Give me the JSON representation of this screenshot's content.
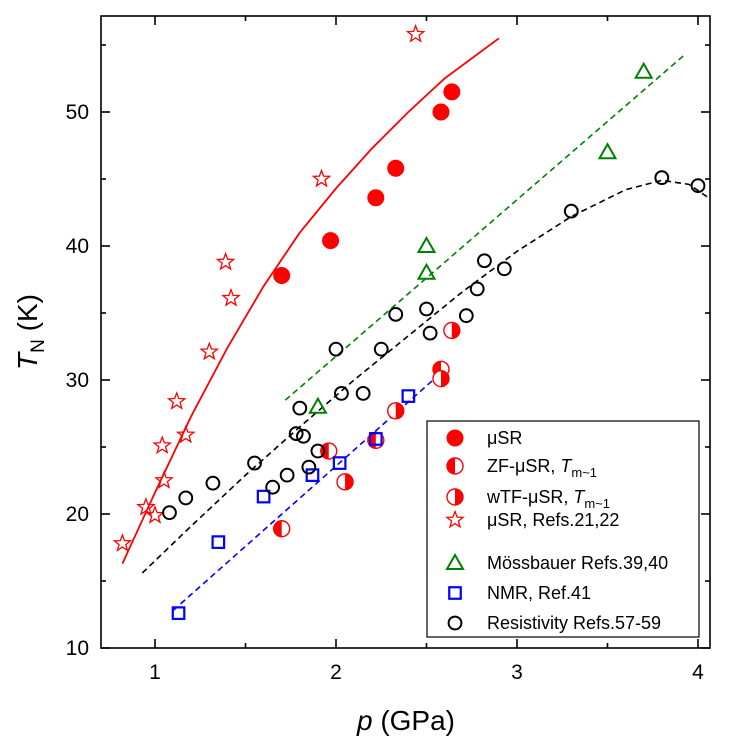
{
  "chart_data": {
    "type": "scatter",
    "xlabel": "p (GPa)",
    "ylabel": "T_N (K)",
    "xlim": [
      0.75,
      4.1
    ],
    "ylim": [
      10,
      57
    ],
    "xticks": [
      "1",
      "2",
      "3",
      "4"
    ],
    "yticks": [
      "10",
      "20",
      "30",
      "40",
      "50"
    ],
    "grid": false,
    "legend_placement": "bottom-right",
    "series": [
      {
        "name": "μSR",
        "marker": "filled-circle",
        "color": "#ff0000",
        "points": [
          [
            1.7,
            37.8
          ],
          [
            1.97,
            40.4
          ],
          [
            2.22,
            43.6
          ],
          [
            2.33,
            45.8
          ],
          [
            2.58,
            50.0
          ],
          [
            2.64,
            51.5
          ]
        ]
      },
      {
        "name": "ZF-μSR, T_m~1",
        "marker": "half-circle-left",
        "color": "#ff0000",
        "points": [
          [
            1.7,
            18.9
          ],
          [
            1.96,
            24.7
          ],
          [
            2.22,
            25.5
          ],
          [
            2.58,
            30.8
          ]
        ]
      },
      {
        "name": "wTF-μSR, T_m~1",
        "marker": "half-circle-right",
        "color": "#ff0000",
        "points": [
          [
            2.05,
            22.4
          ],
          [
            2.33,
            27.7
          ],
          [
            2.58,
            30.1
          ],
          [
            2.64,
            33.7
          ]
        ]
      },
      {
        "name": "μSR, Refs.21,22",
        "marker": "open-star",
        "color": "#ff0000",
        "points": [
          [
            0.82,
            17.8
          ],
          [
            0.95,
            20.5
          ],
          [
            1.0,
            19.9
          ],
          [
            1.05,
            22.5
          ],
          [
            1.04,
            25.1
          ],
          [
            1.12,
            28.4
          ],
          [
            1.17,
            25.9
          ],
          [
            1.3,
            32.1
          ],
          [
            1.39,
            38.8
          ],
          [
            1.42,
            36.1
          ],
          [
            1.92,
            45.0
          ],
          [
            2.44,
            55.8
          ]
        ]
      },
      {
        "name": "Mössbauer Refs.39,40",
        "marker": "open-triangle",
        "color": "#008000",
        "points": [
          [
            1.9,
            28.0
          ],
          [
            2.5,
            38.0
          ],
          [
            2.5,
            40.0
          ],
          [
            3.5,
            47.0
          ],
          [
            3.7,
            53.0
          ]
        ]
      },
      {
        "name": "NMR, Ref.41",
        "marker": "open-square",
        "color": "#0000ff",
        "points": [
          [
            1.13,
            12.6
          ],
          [
            1.35,
            17.9
          ],
          [
            1.6,
            21.3
          ],
          [
            1.87,
            22.9
          ],
          [
            2.02,
            23.8
          ],
          [
            2.22,
            25.6
          ],
          [
            2.4,
            28.8
          ]
        ]
      },
      {
        "name": "Resistivity Refs.57-59",
        "marker": "open-circle",
        "color": "#000000",
        "points": [
          [
            1.08,
            20.1
          ],
          [
            1.17,
            21.2
          ],
          [
            1.32,
            22.3
          ],
          [
            1.55,
            23.8
          ],
          [
            1.65,
            22.0
          ],
          [
            1.73,
            22.9
          ],
          [
            1.78,
            26.0
          ],
          [
            1.8,
            27.9
          ],
          [
            1.82,
            25.8
          ],
          [
            1.85,
            23.5
          ],
          [
            1.9,
            24.7
          ],
          [
            2.0,
            32.3
          ],
          [
            2.03,
            29.0
          ],
          [
            2.15,
            29.0
          ],
          [
            2.25,
            32.3
          ],
          [
            2.33,
            34.9
          ],
          [
            2.5,
            35.3
          ],
          [
            2.52,
            33.5
          ],
          [
            2.72,
            34.8
          ],
          [
            2.78,
            36.8
          ],
          [
            2.82,
            38.9
          ],
          [
            2.93,
            38.3
          ],
          [
            3.3,
            42.6
          ],
          [
            3.8,
            45.1
          ],
          [
            4.0,
            44.5
          ]
        ]
      }
    ],
    "fit_lines": [
      {
        "color": "#ff0000",
        "style": "solid",
        "points": [
          [
            0.82,
            16.3
          ],
          [
            1.0,
            21.6
          ],
          [
            1.2,
            27.3
          ],
          [
            1.4,
            32.4
          ],
          [
            1.6,
            37.0
          ],
          [
            1.8,
            41.0
          ],
          [
            2.0,
            44.3
          ],
          [
            2.2,
            47.3
          ],
          [
            2.4,
            50.0
          ],
          [
            2.6,
            52.5
          ],
          [
            2.9,
            55.5
          ]
        ]
      },
      {
        "color": "#008000",
        "style": "dashed",
        "points": [
          [
            1.72,
            28.5
          ],
          [
            3.92,
            54.2
          ]
        ]
      },
      {
        "color": "#0000ff",
        "style": "dashed",
        "points": [
          [
            1.1,
            12.8
          ],
          [
            2.62,
            31.0
          ]
        ]
      },
      {
        "color": "#000000",
        "style": "dashed",
        "points": [
          [
            0.93,
            15.6
          ],
          [
            1.2,
            19.1
          ],
          [
            1.5,
            22.9
          ],
          [
            1.8,
            26.5
          ],
          [
            2.1,
            30.0
          ],
          [
            2.4,
            33.3
          ],
          [
            2.7,
            36.6
          ],
          [
            3.0,
            39.6
          ],
          [
            3.3,
            42.2
          ],
          [
            3.6,
            44.2
          ],
          [
            3.8,
            44.9
          ],
          [
            3.95,
            44.6
          ],
          [
            4.08,
            43.4
          ]
        ]
      }
    ],
    "legend": [
      {
        "text": "μSR"
      },
      {
        "text": "ZF-μSR, ",
        "italic_text": "T",
        "sub": "m~1"
      },
      {
        "text": "wTF-μSR, ",
        "italic_text": "T",
        "sub": "m~1"
      },
      {
        "text": "μSR, Refs.21,22"
      },
      {
        "text": "Mössbauer Refs.39,40"
      },
      {
        "text": "NMR, Ref.41"
      },
      {
        "text": "Resistivity Refs.57-59"
      }
    ],
    "axis_text": {
      "y_italic": "T",
      "y_sub": "N",
      "y_rest": " (K)",
      "x_italic": "p",
      "x_rest": " (GPa)"
    }
  }
}
